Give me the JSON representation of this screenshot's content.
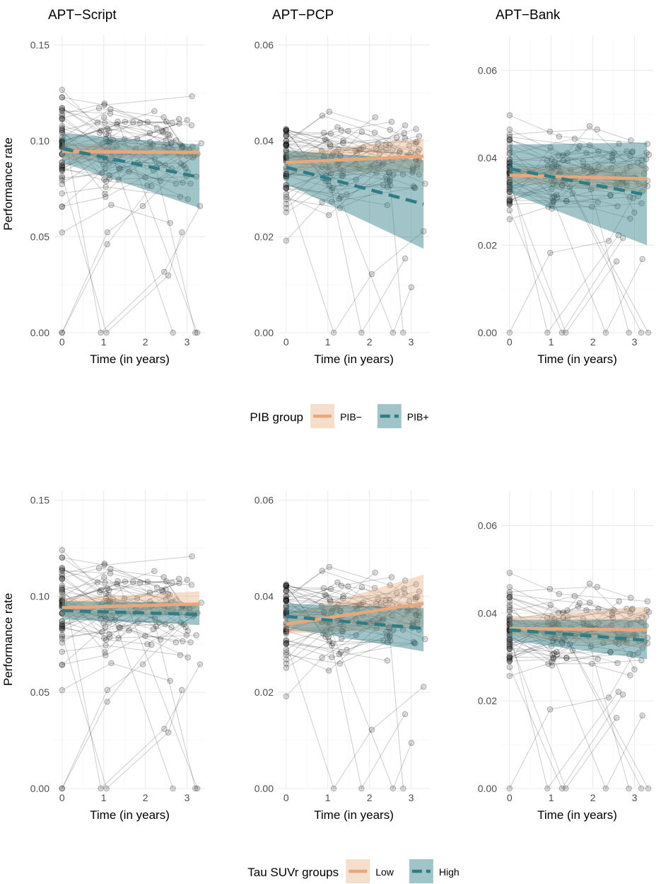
{
  "colors": {
    "low_group": "#E8A87C",
    "high_group": "#2E7D84",
    "grid": "#ebebeb",
    "tick_text": "#4d4d4d",
    "points": "#000000"
  },
  "legends": [
    {
      "title": "PIB group",
      "items": [
        {
          "label": "PIB−",
          "group": "low"
        },
        {
          "label": "PIB+",
          "group": "high"
        }
      ]
    },
    {
      "title": "Tau SUVr groups",
      "items": [
        {
          "label": "Low",
          "group": "low"
        },
        {
          "label": "High",
          "group": "high"
        }
      ]
    }
  ],
  "chart_data": [
    {
      "type": "line",
      "row": 1,
      "col": 1,
      "title": "APT−Script",
      "xlabel": "Time (in years)",
      "ylabel": "Performance rate",
      "xlim": [
        -0.2,
        3.45
      ],
      "ylim": [
        0,
        0.155
      ],
      "xticks": [
        0,
        1,
        2,
        3
      ],
      "yticks": [
        0.0,
        0.05,
        0.1,
        0.15
      ],
      "ytick_labels": [
        "0.00",
        "0.05",
        "0.10",
        "0.15"
      ],
      "seed": 11,
      "series": [
        {
          "name": "PIB−",
          "group": "low",
          "x": [
            0,
            3.3
          ],
          "fit": [
            0.0945,
            0.094
          ],
          "lower": [
            0.09,
            0.0915
          ],
          "upper": [
            0.099,
            0.0965
          ]
        },
        {
          "name": "PIB+",
          "group": "high",
          "x": [
            0,
            3.3
          ],
          "fit": [
            0.096,
            0.081
          ],
          "lower": [
            0.089,
            0.065
          ],
          "upper": [
            0.104,
            0.098
          ]
        }
      ]
    },
    {
      "type": "line",
      "row": 1,
      "col": 2,
      "title": "APT−PCP",
      "xlabel": "Time (in years)",
      "ylabel": "",
      "xlim": [
        -0.2,
        3.45
      ],
      "ylim": [
        0,
        0.062
      ],
      "xticks": [
        0,
        1,
        2,
        3
      ],
      "yticks": [
        0.0,
        0.02,
        0.04,
        0.06
      ],
      "ytick_labels": [
        "0.00",
        "0.02",
        "0.04",
        "0.06"
      ],
      "seed": 23,
      "series": [
        {
          "name": "PIB−",
          "group": "low",
          "x": [
            0,
            3.3
          ],
          "fit": [
            0.0355,
            0.0368
          ],
          "lower": [
            0.0335,
            0.0335
          ],
          "upper": [
            0.0375,
            0.0405
          ]
        },
        {
          "name": "PIB+",
          "group": "high",
          "x": [
            0,
            3.3
          ],
          "fit": [
            0.0345,
            0.0268
          ],
          "lower": [
            0.031,
            0.0175
          ],
          "upper": [
            0.038,
            0.036
          ]
        }
      ]
    },
    {
      "type": "line",
      "row": 1,
      "col": 3,
      "title": "APT−Bank",
      "xlabel": "Time (in years)",
      "ylabel": "",
      "xlim": [
        -0.2,
        3.45
      ],
      "ylim": [
        0,
        0.068
      ],
      "xticks": [
        0,
        1,
        2,
        3
      ],
      "yticks": [
        0.0,
        0.02,
        0.04,
        0.06
      ],
      "ytick_labels": [
        "0.00",
        "0.02",
        "0.04",
        "0.06"
      ],
      "seed": 37,
      "series": [
        {
          "name": "PIB−",
          "group": "low",
          "x": [
            0,
            3.3
          ],
          "fit": [
            0.036,
            0.0352
          ],
          "lower": [
            0.0345,
            0.032
          ],
          "upper": [
            0.0375,
            0.0385
          ]
        },
        {
          "name": "PIB+",
          "group": "high",
          "x": [
            0,
            3.3
          ],
          "fit": [
            0.0375,
            0.0315
          ],
          "lower": [
            0.032,
            0.02
          ],
          "upper": [
            0.043,
            0.0435
          ]
        }
      ]
    },
    {
      "type": "line",
      "row": 2,
      "col": 1,
      "title": "",
      "xlabel": "Time (in years)",
      "ylabel": "Performance rate",
      "xlim": [
        -0.2,
        3.45
      ],
      "ylim": [
        0,
        0.155
      ],
      "xticks": [
        0,
        1,
        2,
        3
      ],
      "yticks": [
        0.0,
        0.05,
        0.1,
        0.15
      ],
      "ytick_labels": [
        "0.00",
        "0.05",
        "0.10",
        "0.15"
      ],
      "seed": 11,
      "series": [
        {
          "name": "Low",
          "group": "low",
          "x": [
            0,
            3.3
          ],
          "fit": [
            0.094,
            0.096
          ],
          "lower": [
            0.089,
            0.0905
          ],
          "upper": [
            0.099,
            0.1025
          ]
        },
        {
          "name": "High",
          "group": "high",
          "x": [
            0,
            3.3
          ],
          "fit": [
            0.0925,
            0.0905
          ],
          "lower": [
            0.088,
            0.085
          ],
          "upper": [
            0.0975,
            0.0965
          ]
        }
      ]
    },
    {
      "type": "line",
      "row": 2,
      "col": 2,
      "title": "",
      "xlabel": "Time (in years)",
      "ylabel": "",
      "xlim": [
        -0.2,
        3.45
      ],
      "ylim": [
        0,
        0.062
      ],
      "xticks": [
        0,
        1,
        2,
        3
      ],
      "yticks": [
        0.0,
        0.02,
        0.04,
        0.06
      ],
      "ytick_labels": [
        "0.00",
        "0.02",
        "0.04",
        "0.06"
      ],
      "seed": 23,
      "series": [
        {
          "name": "Low",
          "group": "low",
          "x": [
            0,
            3.3
          ],
          "fit": [
            0.0342,
            0.0385
          ],
          "lower": [
            0.0322,
            0.0335
          ],
          "upper": [
            0.036,
            0.0445
          ]
        },
        {
          "name": "High",
          "group": "high",
          "x": [
            0,
            3.3
          ],
          "fit": [
            0.0358,
            0.0333
          ],
          "lower": [
            0.0335,
            0.0285
          ],
          "upper": [
            0.0385,
            0.0375
          ]
        }
      ]
    },
    {
      "type": "line",
      "row": 2,
      "col": 3,
      "title": "",
      "xlabel": "Time (in years)",
      "ylabel": "",
      "xlim": [
        -0.2,
        3.45
      ],
      "ylim": [
        0,
        0.068
      ],
      "xticks": [
        0,
        1,
        2,
        3
      ],
      "yticks": [
        0.0,
        0.02,
        0.04,
        0.06
      ],
      "ytick_labels": [
        "0.00",
        "0.02",
        "0.04",
        "0.06"
      ],
      "seed": 37,
      "series": [
        {
          "name": "Low",
          "group": "low",
          "x": [
            0,
            3.3
          ],
          "fit": [
            0.0365,
            0.0362
          ],
          "lower": [
            0.0348,
            0.0322
          ],
          "upper": [
            0.039,
            0.0415
          ]
        },
        {
          "name": "High",
          "group": "high",
          "x": [
            0,
            3.3
          ],
          "fit": [
            0.0362,
            0.0338
          ],
          "lower": [
            0.0338,
            0.0295
          ],
          "upper": [
            0.0385,
            0.0385
          ]
        }
      ]
    }
  ]
}
